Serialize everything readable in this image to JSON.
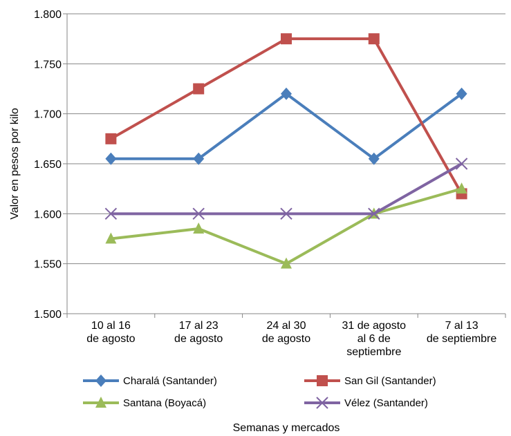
{
  "chart_data": {
    "type": "line",
    "title": "",
    "xlabel": "Semanas y mercados",
    "ylabel": "Valor en pesos por kilo",
    "ylim": [
      1.5,
      1.8
    ],
    "yticks": [
      "1.500",
      "1.550",
      "1.600",
      "1.650",
      "1.700",
      "1.750",
      "1.800"
    ],
    "categories": [
      [
        "10 al 16",
        "de agosto"
      ],
      [
        "17 al 23",
        "de agosto"
      ],
      [
        "24 al 30",
        "de agosto"
      ],
      [
        "31 de agosto",
        "al 6 de",
        "septiembre"
      ],
      [
        "7 al 13",
        "de septiembre"
      ]
    ],
    "grid": true,
    "legend_position": "bottom",
    "series": [
      {
        "name": "Charalá (Santander)",
        "marker": "diamond",
        "color": "#4a7ebb",
        "values": [
          1.655,
          1.655,
          1.72,
          1.655,
          1.72
        ]
      },
      {
        "name": "San Gil (Santander)",
        "marker": "square",
        "color": "#c0504d",
        "values": [
          1.675,
          1.725,
          1.775,
          1.775,
          1.62
        ]
      },
      {
        "name": "Santana (Boyacá)",
        "marker": "triangle",
        "color": "#9bbb59",
        "values": [
          1.575,
          1.585,
          1.55,
          1.6,
          1.625
        ]
      },
      {
        "name": "Vélez (Santander)",
        "marker": "x",
        "color": "#7f64a2",
        "values": [
          1.6,
          1.6,
          1.6,
          1.6,
          1.65
        ]
      }
    ]
  }
}
